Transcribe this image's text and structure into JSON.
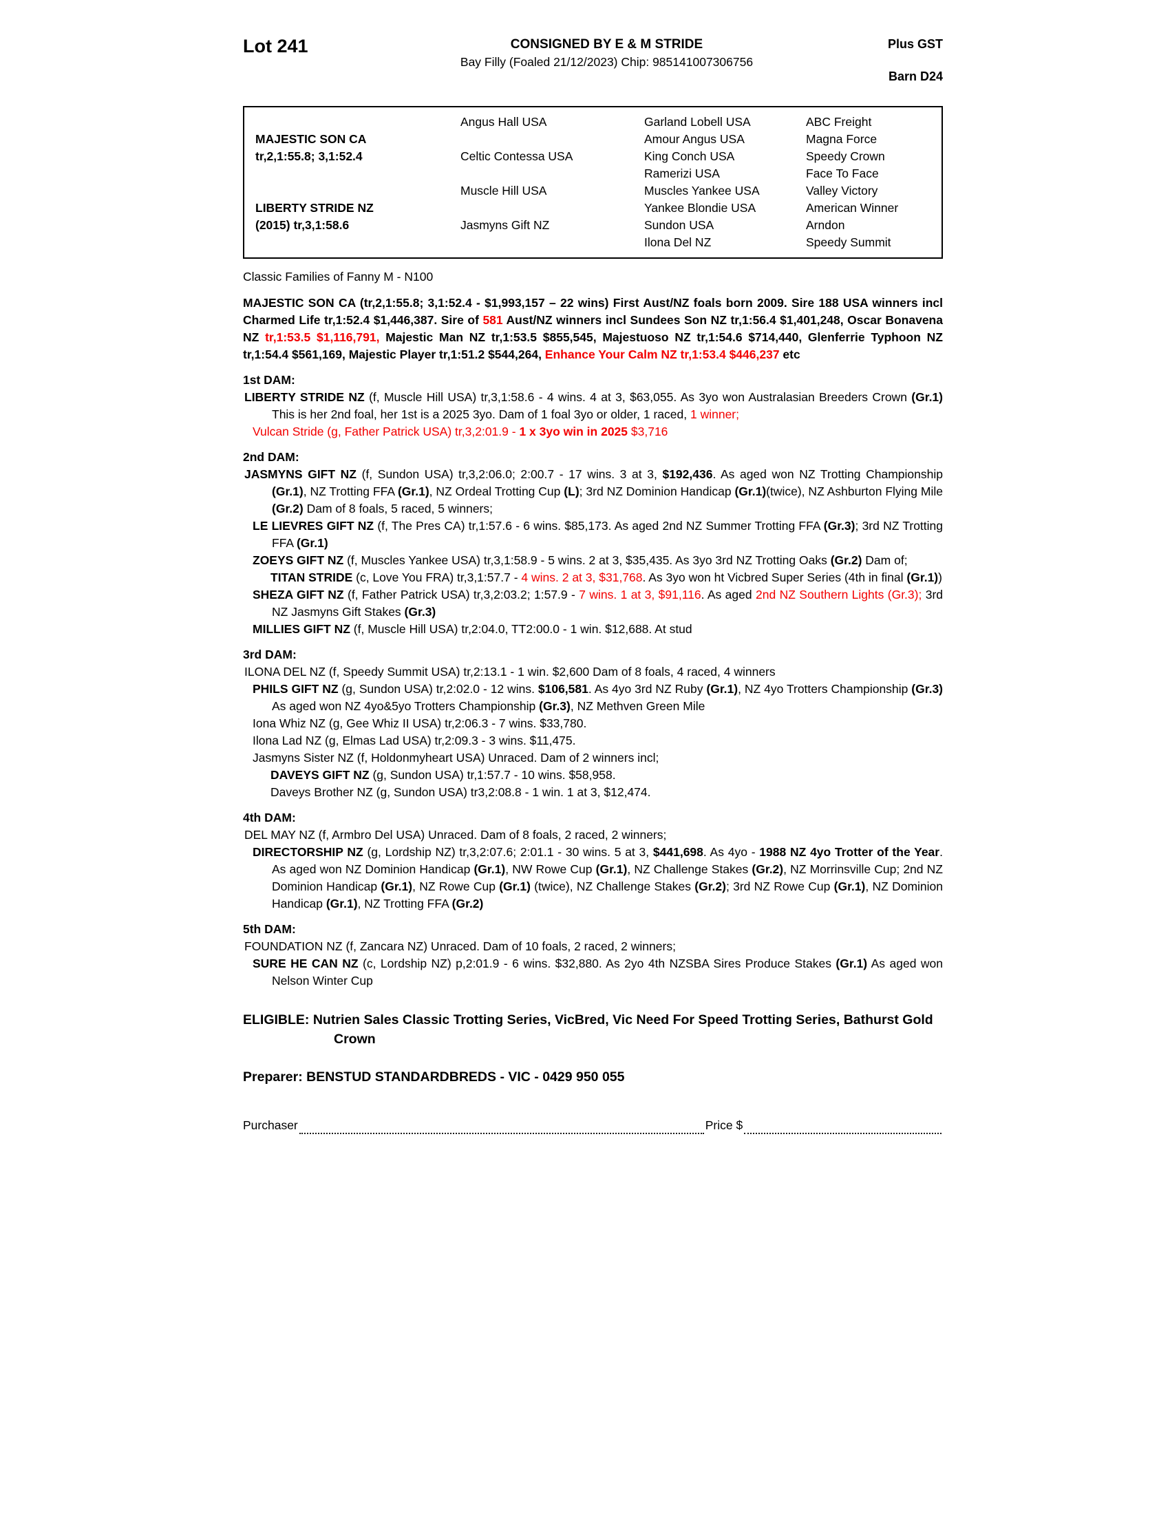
{
  "colors": {
    "red": "#f20000"
  },
  "header": {
    "lot": "Lot 241",
    "consignor": "CONSIGNED BY E & M STRIDE",
    "description": "Bay Filly (Foaled 21/12/2023) Chip: 985141007306756",
    "gst": "Plus GST",
    "barn": "Barn D24"
  },
  "pedigree": {
    "subjects": [
      {
        "row": 2,
        "text": "MAJESTIC SON CA"
      },
      {
        "row": 3,
        "text": "tr,2,1:55.8; 3,1:52.4"
      },
      {
        "row": 6,
        "text": "LIBERTY STRIDE NZ"
      },
      {
        "row": 7,
        "text": "(2015) tr,3,1:58.6"
      }
    ],
    "parents": [
      {
        "row": 1,
        "text": "Angus Hall USA"
      },
      {
        "row": 3,
        "text": "Celtic Contessa USA"
      },
      {
        "row": 5,
        "text": "Muscle Hill USA"
      },
      {
        "row": 7,
        "text": "Jasmyns Gift NZ"
      }
    ],
    "grandparents": [
      "Garland Lobell USA",
      "Amour Angus USA",
      "King Conch USA",
      "Ramerizi USA",
      "Muscles Yankee USA",
      "Yankee Blondie USA",
      "Sundon USA",
      "Ilona Del NZ"
    ],
    "greatgrandparents": [
      "ABC Freight",
      "Magna Force",
      "Speedy Crown",
      "Face To Face",
      "Valley Victory",
      "American Winner",
      "Arndon",
      "Speedy Summit"
    ]
  },
  "family_line": "Classic Families of Fanny M - N100",
  "sire_paragraph": [
    {
      "t": "MAJESTIC SON CA (tr,2,1:55.8; 3,1:52.4 - $1,993,157 – 22 wins) First Aust/NZ foals born 2009. Sire 188 USA winners incl Charmed Life tr,1:52.4 $1,446,387. Sire of ",
      "b": 1
    },
    {
      "t": "581",
      "b": 1,
      "r": 1
    },
    {
      "t": " Aust/NZ winners incl Sundees Son NZ tr,1:56.4 $1,401,248, Oscar Bonavena NZ ",
      "b": 1
    },
    {
      "t": "tr,1:53.5 $1,116,791,",
      "b": 1,
      "r": 1
    },
    {
      "t": " Majestic Man NZ tr,1:53.5 $855,545, Majestuoso NZ tr,1:54.6 $714,440, Glenferrie Typhoon NZ tr,1:54.4 $561,169, Majestic Player tr,1:51.2 $544,264, ",
      "b": 1
    },
    {
      "t": "Enhance Your Calm NZ tr,1:53.4 $446,237",
      "b": 1,
      "r": 1
    },
    {
      "t": " etc",
      "b": 1
    }
  ],
  "sections": [
    {
      "heading": "1st DAM:",
      "entries": [
        {
          "indent": 0,
          "segments": [
            {
              "t": "LIBERTY STRIDE NZ",
              "b": 1
            },
            {
              "t": " (f, Muscle Hill USA) tr,3,1:58.6 - 4 wins. 4 at 3, $63,055. As 3yo won Australasian Breeders Crown "
            },
            {
              "t": "(Gr.1)",
              "b": 1
            },
            {
              "t": " This is her 2nd foal, her 1st is a 2025 3yo. Dam of 1 foal 3yo or older, 1 raced, "
            },
            {
              "t": "1 winner;",
              "r": 1
            }
          ]
        },
        {
          "indent": 1,
          "segments": [
            {
              "t": "Vulcan Stride (g, Father Patrick USA) tr,3,2:01.9 - ",
              "r": 1
            },
            {
              "t": "1 x 3yo win in 2025",
              "b": 1,
              "r": 1
            },
            {
              "t": " $3,716",
              "r": 1
            }
          ]
        }
      ]
    },
    {
      "heading": "2nd DAM:",
      "entries": [
        {
          "indent": 0,
          "segments": [
            {
              "t": "JASMYNS GIFT NZ",
              "b": 1
            },
            {
              "t": " (f, Sundon USA) tr,3,2:06.0; 2:00.7 - 17 wins. 3 at 3, "
            },
            {
              "t": "$192,436",
              "b": 1
            },
            {
              "t": ". As aged won NZ Trotting Championship "
            },
            {
              "t": "(Gr.1)",
              "b": 1
            },
            {
              "t": ", NZ Trotting FFA "
            },
            {
              "t": "(Gr.1)",
              "b": 1
            },
            {
              "t": ", NZ Ordeal Trotting Cup "
            },
            {
              "t": "(L)",
              "b": 1
            },
            {
              "t": "; 3rd NZ Dominion Handicap "
            },
            {
              "t": "(Gr.1)",
              "b": 1
            },
            {
              "t": "(twice), NZ Ashburton Flying Mile "
            },
            {
              "t": "(Gr.2)",
              "b": 1
            },
            {
              "t": " Dam of 8 foals, 5 raced, 5 winners;"
            }
          ]
        },
        {
          "indent": 1,
          "segments": [
            {
              "t": "LE LIEVRES GIFT NZ",
              "b": 1
            },
            {
              "t": " (f, The Pres CA) tr,1:57.6 - 6 wins. $85,173. As aged 2nd NZ Summer Trotting FFA "
            },
            {
              "t": "(Gr.3)",
              "b": 1
            },
            {
              "t": "; 3rd NZ Trotting FFA "
            },
            {
              "t": "(Gr.1)",
              "b": 1
            }
          ]
        },
        {
          "indent": 1,
          "segments": [
            {
              "t": "ZOEYS GIFT NZ",
              "b": 1
            },
            {
              "t": " (f, Muscles Yankee USA) tr,3,1:58.9 - 5 wins. 2 at 3, $35,435. As 3yo 3rd NZ Trotting Oaks "
            },
            {
              "t": "(Gr.2)",
              "b": 1
            },
            {
              "t": " Dam of;"
            }
          ]
        },
        {
          "indent": 2,
          "segments": [
            {
              "t": "TITAN STRIDE",
              "b": 1
            },
            {
              "t": " (c, Love You FRA) tr,3,1:57.7 - "
            },
            {
              "t": "4 wins. 2 at 3, $31,768",
              "r": 1
            },
            {
              "t": ". As 3yo won ht Vicbred Super Series (4th in final "
            },
            {
              "t": "(Gr.1)",
              "b": 1
            },
            {
              "t": ")"
            }
          ]
        },
        {
          "indent": 1,
          "segments": [
            {
              "t": "SHEZA GIFT NZ",
              "b": 1
            },
            {
              "t": " (f, Father Patrick USA) tr,3,2:03.2; 1:57.9 - "
            },
            {
              "t": "7 wins. 1 at 3, $91,116",
              "r": 1
            },
            {
              "t": ". As aged "
            },
            {
              "t": "2nd NZ Southern Lights (Gr.3);",
              "r": 1
            },
            {
              "t": " 3rd NZ Jasmyns Gift Stakes "
            },
            {
              "t": "(Gr.3)",
              "b": 1
            }
          ]
        },
        {
          "indent": 1,
          "segments": [
            {
              "t": "MILLIES GIFT NZ",
              "b": 1
            },
            {
              "t": " (f, Muscle Hill USA) tr,2:04.0, TT2:00.0 - 1 win. $12,688. At stud"
            }
          ]
        }
      ]
    },
    {
      "heading": "3rd DAM:",
      "entries": [
        {
          "indent": 0,
          "segments": [
            {
              "t": "ILONA DEL NZ (f, Speedy Summit USA) tr,2:13.1 - 1 win. $2,600 Dam of 8 foals, 4 raced, 4 winners"
            }
          ]
        },
        {
          "indent": 1,
          "segments": [
            {
              "t": "PHILS GIFT NZ",
              "b": 1
            },
            {
              "t": " (g, Sundon USA) tr,2:02.0 - 12 wins. "
            },
            {
              "t": "$106,581",
              "b": 1
            },
            {
              "t": ". As 4yo 3rd NZ Ruby "
            },
            {
              "t": "(Gr.1)",
              "b": 1
            },
            {
              "t": ", NZ 4yo Trotters Championship "
            },
            {
              "t": "(Gr.3)",
              "b": 1
            },
            {
              "t": " As aged won NZ 4yo&5yo Trotters Championship "
            },
            {
              "t": "(Gr.3)",
              "b": 1
            },
            {
              "t": ", NZ Methven Green Mile"
            }
          ]
        },
        {
          "indent": 1,
          "segments": [
            {
              "t": "Iona Whiz NZ (g, Gee Whiz II USA) tr,2:06.3 - 7 wins. $33,780."
            }
          ]
        },
        {
          "indent": 1,
          "segments": [
            {
              "t": "Ilona Lad NZ (g, Elmas Lad USA) tr,2:09.3 - 3 wins. $11,475."
            }
          ]
        },
        {
          "indent": 1,
          "segments": [
            {
              "t": "Jasmyns Sister NZ (f, Holdonmyheart USA) Unraced. Dam of 2 winners incl;"
            }
          ]
        },
        {
          "indent": 2,
          "segments": [
            {
              "t": "DAVEYS GIFT NZ",
              "b": 1
            },
            {
              "t": " (g, Sundon USA) tr,1:57.7 - 10 wins. $58,958."
            }
          ]
        },
        {
          "indent": 2,
          "segments": [
            {
              "t": "Daveys Brother NZ (g, Sundon USA) tr3,2:08.8 - 1 win. 1 at 3, $12,474."
            }
          ]
        }
      ]
    },
    {
      "heading": "4th DAM:",
      "entries": [
        {
          "indent": 0,
          "segments": [
            {
              "t": "DEL MAY NZ (f, Armbro Del USA) Unraced. Dam of 8 foals, 2 raced, 2 winners;"
            }
          ]
        },
        {
          "indent": 1,
          "segments": [
            {
              "t": "DIRECTORSHIP NZ",
              "b": 1
            },
            {
              "t": " (g, Lordship NZ) tr,3,2:07.6; 2:01.1 - 30 wins. 5 at 3, "
            },
            {
              "t": "$441,698",
              "b": 1
            },
            {
              "t": ". As 4yo - "
            },
            {
              "t": "1988 NZ 4yo Trotter of the Year",
              "b": 1
            },
            {
              "t": ". As aged won NZ Dominion Handicap "
            },
            {
              "t": "(Gr.1)",
              "b": 1
            },
            {
              "t": ", NW Rowe Cup "
            },
            {
              "t": "(Gr.1)",
              "b": 1
            },
            {
              "t": ", NZ Challenge Stakes "
            },
            {
              "t": "(Gr.2)",
              "b": 1
            },
            {
              "t": ", NZ Morrinsville Cup; 2nd NZ Dominion Handicap "
            },
            {
              "t": "(Gr.1)",
              "b": 1
            },
            {
              "t": ", NZ Rowe Cup "
            },
            {
              "t": "(Gr.1)",
              "b": 1
            },
            {
              "t": " (twice), NZ Challenge Stakes "
            },
            {
              "t": "(Gr.2)",
              "b": 1
            },
            {
              "t": "; 3rd NZ Rowe Cup "
            },
            {
              "t": "(Gr.1)",
              "b": 1
            },
            {
              "t": ", NZ Dominion Handicap "
            },
            {
              "t": "(Gr.1)",
              "b": 1
            },
            {
              "t": ", NZ Trotting FFA "
            },
            {
              "t": "(Gr.2)",
              "b": 1
            }
          ]
        }
      ]
    },
    {
      "heading": "5th DAM:",
      "entries": [
        {
          "indent": 0,
          "segments": [
            {
              "t": "FOUNDATION NZ (f, Zancara NZ) Unraced. Dam of 10 foals, 2 raced, 2 winners;"
            }
          ]
        },
        {
          "indent": 1,
          "segments": [
            {
              "t": "SURE HE CAN NZ",
              "b": 1
            },
            {
              "t": " (c, Lordship NZ) p,2:01.9 - 6 wins. $32,880. As 2yo 4th NZSBA Sires Produce Stakes "
            },
            {
              "t": "(Gr.1)",
              "b": 1
            },
            {
              "t": " As aged won Nelson Winter Cup"
            }
          ]
        }
      ]
    }
  ],
  "eligible": {
    "label": "ELIGIBLE:",
    "text": " Nutrien Sales Classic Trotting Series, VicBred, Vic Need For Speed Trotting Series, Bathurst Gold Crown"
  },
  "preparer": "Preparer: BENSTUD STANDARDBREDS - VIC - 0429 950 055",
  "purchase_line": {
    "purchaser_label": "Purchaser",
    "price_label": "Price $"
  }
}
